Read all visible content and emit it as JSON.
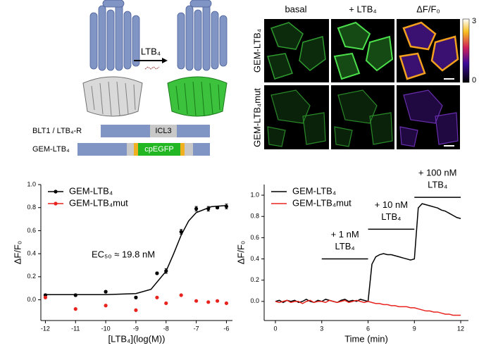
{
  "schematic": {
    "ligand_label": "LTB₄",
    "constructs": [
      {
        "name": "BLT1 / LTB₄-R",
        "segment": "ICL3"
      },
      {
        "name": "GEM-LTB₄",
        "segment": "cpEGFP"
      }
    ]
  },
  "imaging": {
    "columns": [
      "basal",
      "+ LTB₄",
      "ΔF/F₀"
    ],
    "rows": [
      "GEM-LTB₄",
      "GEM-LTB₄mut"
    ],
    "colorbar_ticks": [
      3,
      0
    ]
  },
  "chart_data": [
    {
      "type": "scatter",
      "ylabel": "ΔF/F₀",
      "xlabel": "[LTB₄](log(M))",
      "annotation": "EC₅₀ ≈ 19.8 nM",
      "xlim": [
        -12.15,
        -5.8
      ],
      "xticks": [
        -12,
        -11,
        -10,
        -9,
        -8,
        -7,
        -6
      ],
      "ylim": [
        -0.18,
        1.0
      ],
      "yticks": [
        {
          "value": 0,
          "label": "0.0"
        },
        {
          "value": 0.2,
          "label": "0.2"
        },
        {
          "value": 0.4,
          "label": "0.4"
        },
        {
          "value": 0.6,
          "label": "0.6"
        },
        {
          "value": 0.8,
          "label": "0.8"
        },
        {
          "value": 1.0,
          "label": "1.0"
        }
      ],
      "series": [
        {
          "name": "GEM-LTB₄",
          "color": "#000000",
          "mode": "markers",
          "x": [
            -12,
            -11,
            -10,
            -9,
            -8.3,
            -8,
            -7.5,
            -7,
            -6.6,
            -6.3,
            -6
          ],
          "values": [
            0.04,
            0.04,
            0.07,
            0.02,
            0.23,
            0.25,
            0.59,
            0.79,
            0.79,
            0.8,
            0.81
          ],
          "errors": [
            0.01,
            0.01,
            0.01,
            0.01,
            0.01,
            0.02,
            0.02,
            0.02,
            0.02,
            0.01,
            0.02
          ]
        },
        {
          "name": "GEM-LTB₄mut",
          "color": "#e8231d",
          "mode": "markers",
          "x": [
            -12,
            -11,
            -10,
            -9,
            -8.3,
            -8,
            -7.5,
            -7,
            -6.6,
            -6.3,
            -6
          ],
          "values": [
            0.02,
            -0.08,
            -0.05,
            -0.09,
            0.02,
            -0.03,
            0.04,
            -0.01,
            -0.02,
            -0.01,
            -0.03
          ]
        },
        {
          "color": "#000000",
          "mode": "line",
          "x": [
            -12,
            -11,
            -10,
            -9,
            -8.5,
            -8,
            -7.75,
            -7.5,
            -7.25,
            -7,
            -6.5,
            -6
          ],
          "values": [
            0.045,
            0.045,
            0.045,
            0.054,
            0.091,
            0.248,
            0.399,
            0.561,
            0.685,
            0.757,
            0.808,
            0.818
          ]
        }
      ]
    },
    {
      "type": "line",
      "ylabel": "ΔF/F₀",
      "xlabel": "Time (min)",
      "xlim": [
        -0.73,
        12.5
      ],
      "xticks": [
        0,
        3,
        6,
        9,
        12
      ],
      "ylim": [
        -0.18,
        1.1
      ],
      "yticks": [
        {
          "value": 0,
          "label": "0.0"
        },
        {
          "value": 0.2,
          "label": "0.2"
        },
        {
          "value": 0.4,
          "label": "0.4"
        },
        {
          "value": 0.6,
          "label": "0.6"
        },
        {
          "value": 0.8,
          "label": "0.8"
        },
        {
          "value": 1.0,
          "label": "1.0"
        }
      ],
      "x": [
        0,
        0.25,
        0.5,
        0.75,
        1,
        1.25,
        1.5,
        1.75,
        2,
        2.25,
        2.5,
        2.75,
        3,
        3.25,
        3.5,
        3.75,
        4,
        4.25,
        4.5,
        4.75,
        5,
        5.25,
        5.5,
        5.75,
        6,
        6.25,
        6.5,
        6.75,
        7,
        7.25,
        7.5,
        7.75,
        8,
        8.25,
        8.5,
        8.75,
        9,
        9.25,
        9.5,
        9.75,
        10,
        10.25,
        10.5,
        10.75,
        11,
        11.25,
        11.5,
        11.75,
        12
      ],
      "series": [
        {
          "name": "GEM-LTB₄",
          "color": "#000000",
          "mode": "line",
          "values": [
            0,
            0.01,
            -0.01,
            0.01,
            0,
            0.01,
            -0.01,
            0,
            0.02,
            0,
            -0.01,
            0.01,
            0,
            0.02,
            0.01,
            0,
            -0.01,
            0.01,
            0.02,
            0,
            0.01,
            0,
            0.02,
            0.01,
            0,
            0.35,
            0.42,
            0.44,
            0.45,
            0.44,
            0.44,
            0.43,
            0.42,
            0.41,
            0.4,
            0.39,
            0.4,
            0.88,
            0.92,
            0.91,
            0.9,
            0.89,
            0.88,
            0.86,
            0.85,
            0.83,
            0.81,
            0.79,
            0.78
          ]
        },
        {
          "name": "GEM-LTB₄mut",
          "color": "#e8231d",
          "mode": "line",
          "values": [
            0,
            -0.01,
            0,
            0.01,
            -0.01,
            0,
            0,
            -0.02,
            0,
            0.01,
            -0.01,
            0,
            0,
            -0.01,
            0.01,
            0,
            -0.01,
            0,
            0.01,
            -0.01,
            0,
            0.01,
            0,
            -0.01,
            0,
            -0.01,
            -0.02,
            -0.02,
            -0.03,
            -0.03,
            -0.04,
            -0.04,
            -0.05,
            -0.05,
            -0.05,
            -0.06,
            -0.06,
            -0.07,
            -0.08,
            -0.09,
            -0.09,
            -0.1,
            -0.1,
            -0.11,
            -0.12,
            -0.12,
            -0.13,
            -0.13,
            -0.13
          ]
        }
      ],
      "annotations": [
        {
          "lines": [
            "+ 1 nM",
            "LTB₄"
          ],
          "x": [
            3,
            6
          ],
          "y": 0.4
        },
        {
          "lines": [
            "+ 10 nM",
            "LTB₄"
          ],
          "x": [
            6,
            9
          ],
          "y": 0.68
        },
        {
          "lines": [
            "+ 100 nM",
            "LTB₄"
          ],
          "x": [
            9,
            12
          ],
          "y": 0.98
        }
      ]
    }
  ]
}
